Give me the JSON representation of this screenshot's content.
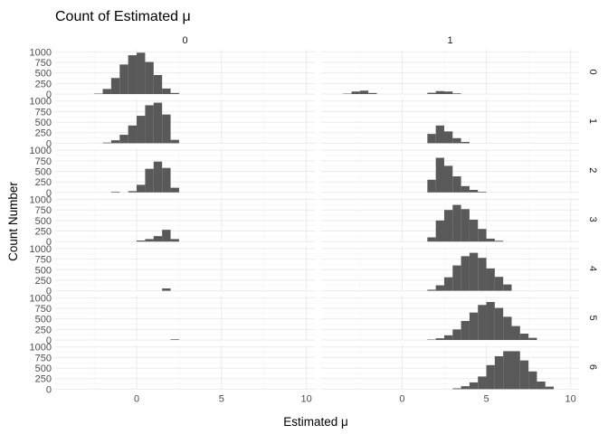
{
  "chart_data": {
    "type": "bar",
    "title": "Count of Estimated μ",
    "xlabel": "Estimated μ",
    "ylabel": "Count Number",
    "xlim": [
      -4.8,
      10.5
    ],
    "ylim": [
      0,
      1050
    ],
    "x_ticks": [
      0,
      5,
      10
    ],
    "y_ticks": [
      0,
      250,
      500,
      750,
      1000
    ],
    "y_tick_labels": [
      "0",
      "250",
      "500",
      "750",
      "1000"
    ],
    "x_tick_labels": [
      "0",
      "5",
      "10"
    ],
    "grid": true,
    "bin_width": 0.5,
    "col_facets": [
      "0",
      "1"
    ],
    "row_facets": [
      "0",
      "1",
      "2",
      "3",
      "4",
      "5",
      "6"
    ],
    "panels": [
      {
        "row": "0",
        "col": "0",
        "x": [
          -2.25,
          -1.75,
          -1.25,
          -0.75,
          -0.25,
          0.25,
          0.75,
          1.25,
          1.75,
          2.25
        ],
        "values": [
          10,
          120,
          380,
          700,
          920,
          980,
          760,
          450,
          130,
          25
        ]
      },
      {
        "row": "0",
        "col": "1",
        "x": [
          -3.25,
          -2.75,
          -2.25,
          -1.75,
          1.75,
          2.25,
          2.75,
          3.25
        ],
        "values": [
          10,
          60,
          80,
          25,
          30,
          70,
          60,
          15
        ]
      },
      {
        "row": "1",
        "col": "0",
        "x": [
          -1.75,
          -1.25,
          -0.75,
          -0.25,
          0.25,
          0.75,
          1.25,
          1.75,
          2.25
        ],
        "values": [
          15,
          70,
          200,
          420,
          650,
          900,
          960,
          680,
          80
        ]
      },
      {
        "row": "1",
        "col": "1",
        "x": [
          1.75,
          2.25,
          2.75,
          3.25,
          3.75
        ],
        "values": [
          220,
          420,
          280,
          120,
          30
        ]
      },
      {
        "row": "2",
        "col": "0",
        "x": [
          -1.25,
          -0.25,
          0.25,
          0.75,
          1.25,
          1.75,
          2.25
        ],
        "values": [
          15,
          30,
          180,
          560,
          730,
          580,
          110
        ]
      },
      {
        "row": "2",
        "col": "1",
        "x": [
          1.75,
          2.25,
          2.75,
          3.25,
          3.75,
          4.25,
          4.75
        ],
        "values": [
          300,
          820,
          630,
          380,
          150,
          60,
          15
        ]
      },
      {
        "row": "3",
        "col": "0",
        "x": [
          0.25,
          0.75,
          1.25,
          1.75,
          2.25
        ],
        "values": [
          25,
          60,
          130,
          280,
          60
        ]
      },
      {
        "row": "3",
        "col": "1",
        "x": [
          1.75,
          2.25,
          2.75,
          3.25,
          3.75,
          4.25,
          4.75,
          5.25,
          5.75
        ],
        "values": [
          100,
          500,
          750,
          870,
          770,
          520,
          300,
          70,
          20
        ]
      },
      {
        "row": "4",
        "col": "0",
        "x": [
          1.75
        ],
        "values": [
          55
        ]
      },
      {
        "row": "4",
        "col": "1",
        "x": [
          1.75,
          2.25,
          2.75,
          3.25,
          3.75,
          4.25,
          4.75,
          5.25,
          5.75,
          6.25
        ],
        "values": [
          25,
          130,
          320,
          600,
          820,
          900,
          780,
          530,
          330,
          150
        ]
      },
      {
        "row": "5",
        "col": "0",
        "x": [
          2.25
        ],
        "values": [
          15
        ]
      },
      {
        "row": "5",
        "col": "1",
        "x": [
          1.75,
          2.25,
          2.75,
          3.25,
          3.75,
          4.25,
          4.75,
          5.25,
          5.75,
          6.25,
          6.75,
          7.25,
          7.75
        ],
        "values": [
          10,
          40,
          110,
          250,
          450,
          650,
          830,
          900,
          760,
          550,
          330,
          150,
          50
        ]
      },
      {
        "row": "6",
        "col": "1",
        "x": [
          3.25,
          3.75,
          4.25,
          4.75,
          5.25,
          5.75,
          6.25,
          6.75,
          7.25,
          7.75,
          8.25,
          8.75
        ],
        "values": [
          20,
          70,
          160,
          300,
          570,
          780,
          900,
          900,
          680,
          420,
          180,
          60
        ]
      }
    ]
  }
}
